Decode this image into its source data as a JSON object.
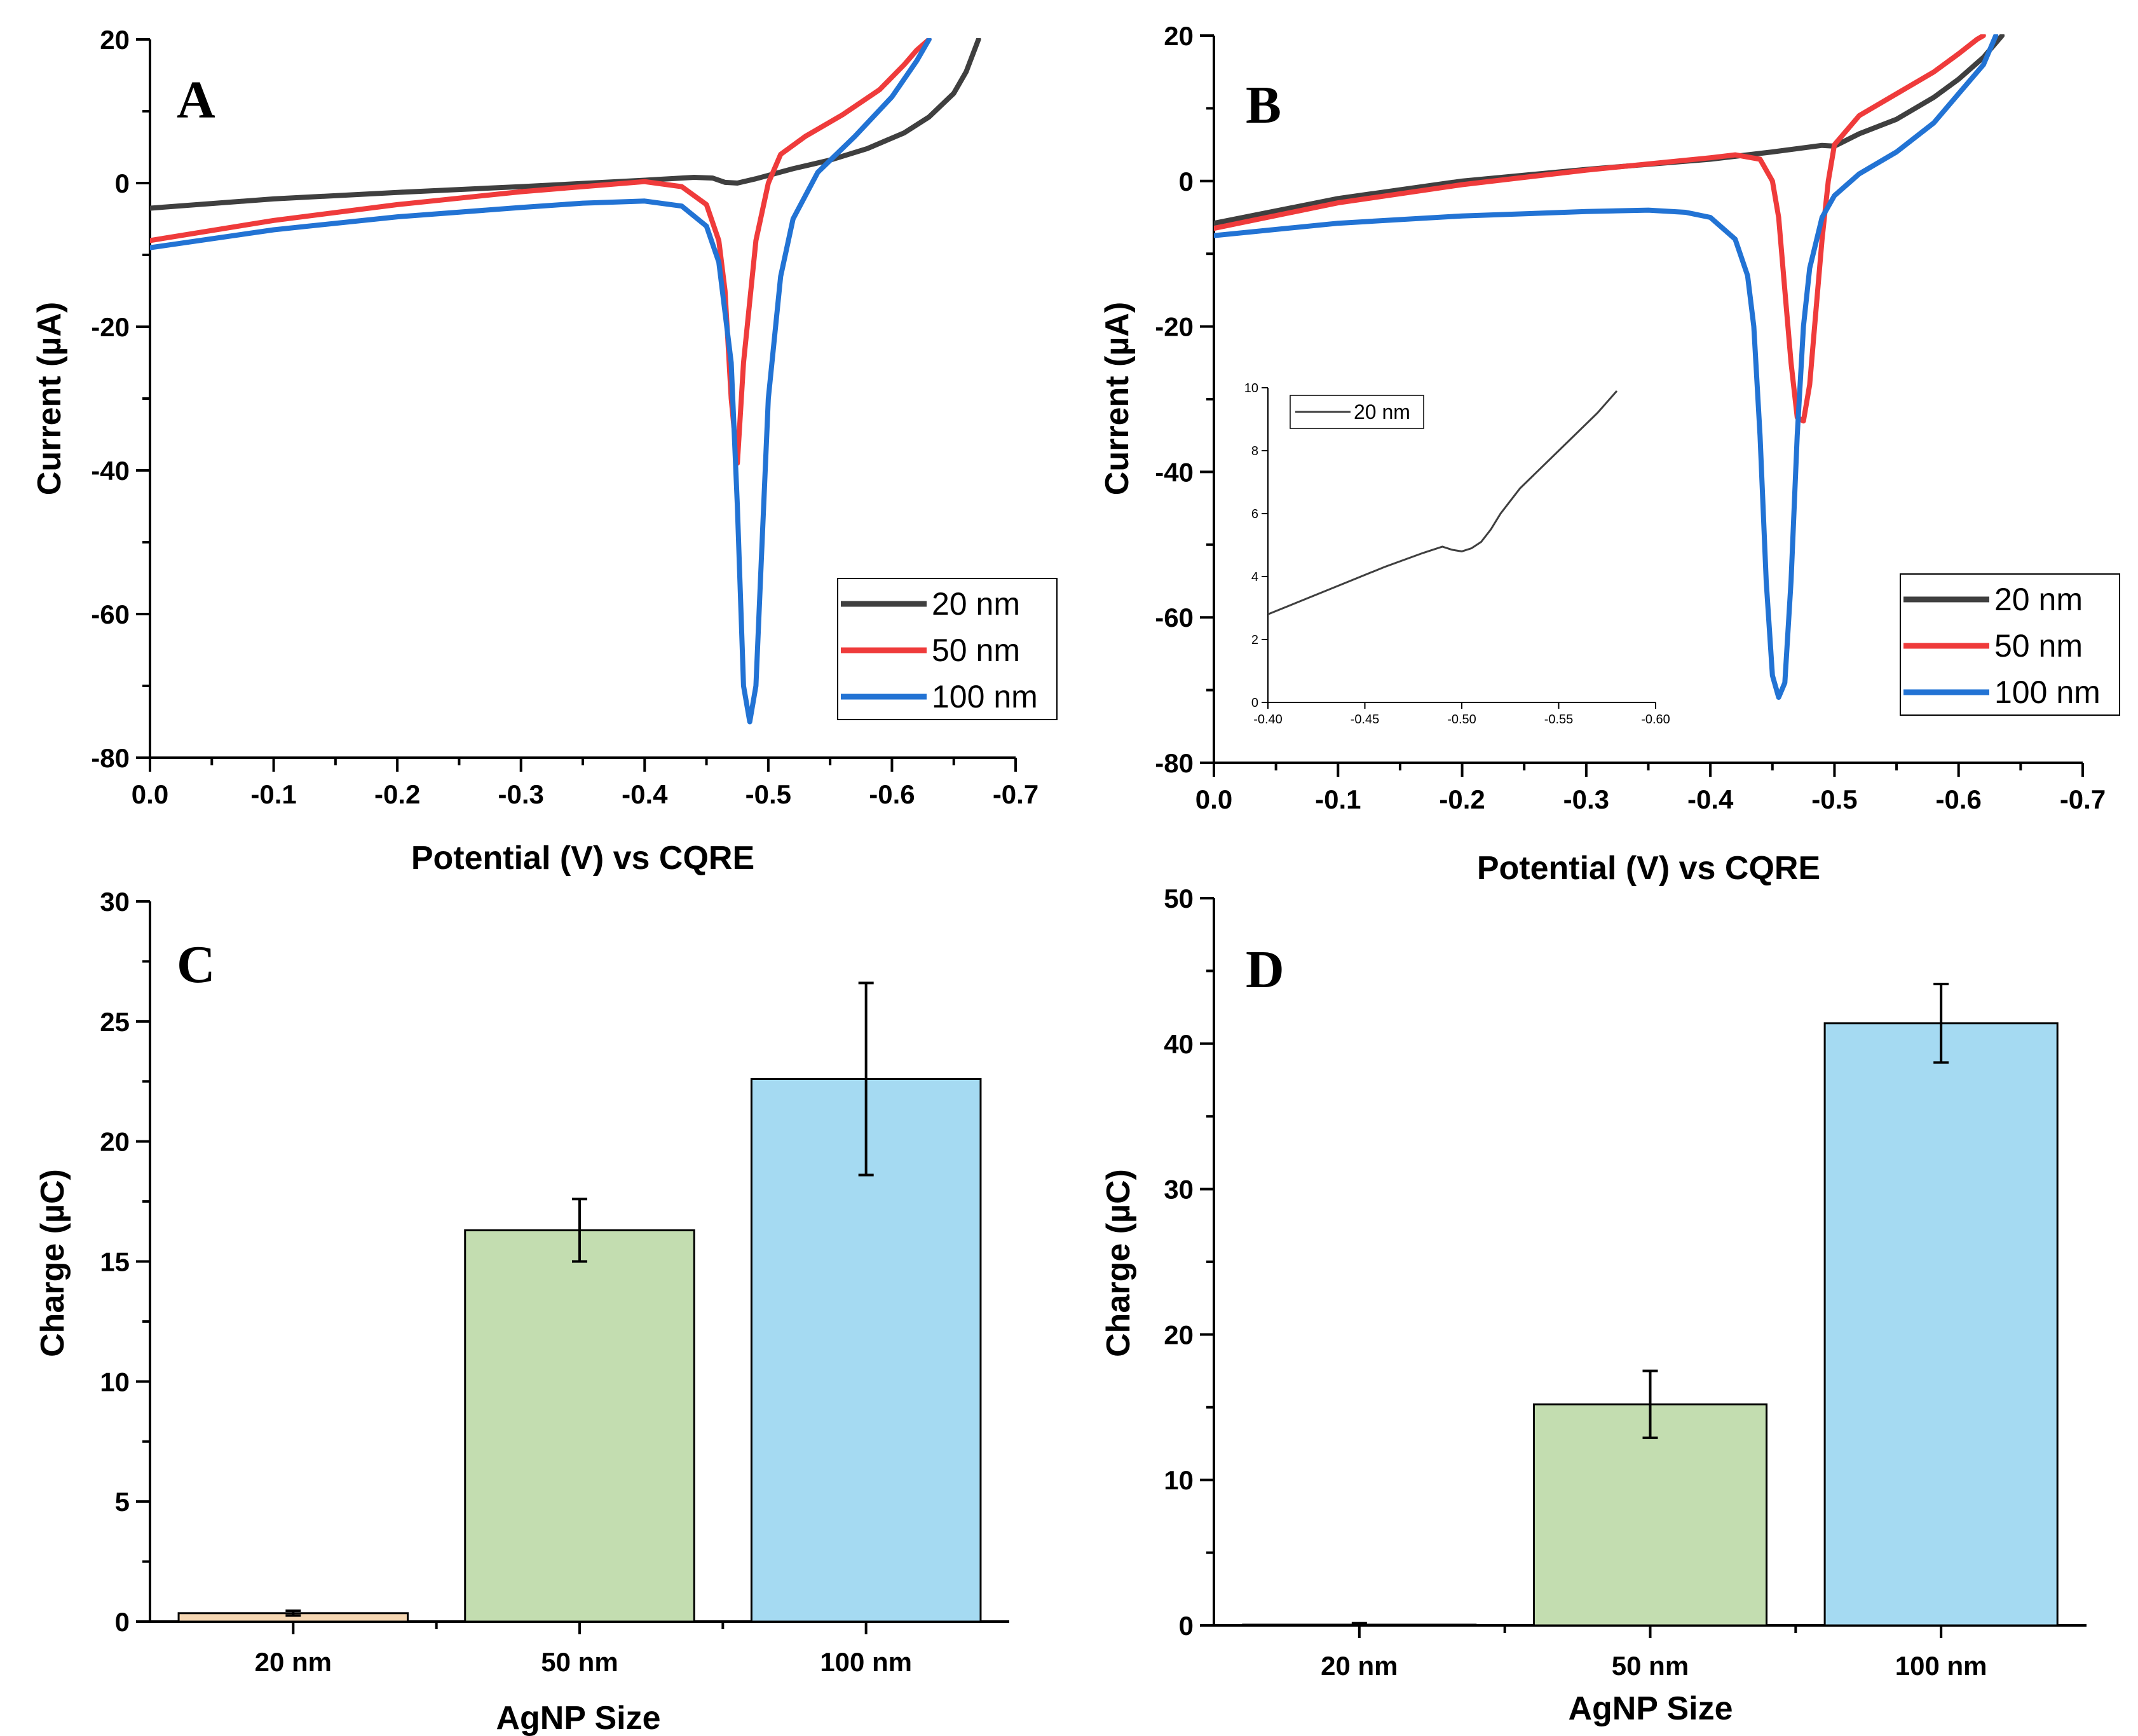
{
  "chart_data": [
    {
      "panel": "A",
      "type": "line",
      "xlabel": "Potential (V) vs CQRE",
      "ylabel": "Current (µA)",
      "xlim": [
        0.0,
        -0.7
      ],
      "ylim": [
        -80,
        20
      ],
      "xticks": [
        "0.0",
        "-0.1",
        "-0.2",
        "-0.3",
        "-0.4",
        "-0.5",
        "-0.6",
        "-0.7"
      ],
      "yticks": [
        "20",
        "0",
        "-20",
        "-40",
        "-60",
        "-80"
      ],
      "legend_position": "bottom-right",
      "series": [
        {
          "name": "20 nm",
          "color": "#3f3f3f",
          "x": [
            0.0,
            -0.1,
            -0.2,
            -0.3,
            -0.4,
            -0.44,
            -0.455,
            -0.465,
            -0.475,
            -0.49,
            -0.52,
            -0.55,
            -0.58,
            -0.61,
            -0.63,
            -0.65,
            -0.66,
            -0.67
          ],
          "y": [
            -3.5,
            -2.2,
            -1.3,
            -0.5,
            0.4,
            0.8,
            0.7,
            0.1,
            0.0,
            0.6,
            2.0,
            3.2,
            4.8,
            7.0,
            9.2,
            12.5,
            15.5,
            20.0
          ]
        },
        {
          "name": "50 nm",
          "color": "#ef3b3b",
          "x": [
            0.0,
            -0.1,
            -0.2,
            -0.3,
            -0.35,
            -0.4,
            -0.43,
            -0.45,
            -0.46,
            -0.465,
            -0.47,
            -0.475,
            -0.48,
            -0.49,
            -0.5,
            -0.51,
            -0.53,
            -0.56,
            -0.59,
            -0.61,
            -0.62,
            -0.63
          ],
          "y": [
            -8.0,
            -5.2,
            -3.0,
            -1.2,
            -0.5,
            0.2,
            -0.5,
            -3.0,
            -8.0,
            -15.0,
            -30.0,
            -39.0,
            -25.0,
            -8.0,
            0.0,
            4.0,
            6.5,
            9.5,
            13.0,
            16.5,
            18.5,
            20.0
          ]
        },
        {
          "name": "100 nm",
          "color": "#2273d4",
          "x": [
            0.0,
            -0.1,
            -0.2,
            -0.3,
            -0.35,
            -0.4,
            -0.43,
            -0.45,
            -0.46,
            -0.47,
            -0.475,
            -0.48,
            -0.485,
            -0.49,
            -0.495,
            -0.5,
            -0.51,
            -0.52,
            -0.54,
            -0.57,
            -0.6,
            -0.62,
            -0.63
          ],
          "y": [
            -9.0,
            -6.5,
            -4.7,
            -3.4,
            -2.8,
            -2.5,
            -3.2,
            -6.0,
            -11.0,
            -25.0,
            -45.0,
            -70.0,
            -75.0,
            -70.0,
            -50.0,
            -30.0,
            -13.0,
            -5.0,
            1.5,
            6.5,
            12.0,
            17.0,
            20.0
          ]
        }
      ]
    },
    {
      "panel": "B",
      "type": "line",
      "xlabel": "Potential (V) vs CQRE",
      "ylabel": "Current (µA)",
      "xlim": [
        0.0,
        -0.7
      ],
      "ylim": [
        -80,
        20
      ],
      "xticks": [
        "0.0",
        "-0.1",
        "-0.2",
        "-0.3",
        "-0.4",
        "-0.5",
        "-0.6",
        "-0.7"
      ],
      "yticks": [
        "20",
        "0",
        "-20",
        "-40",
        "-60",
        "-80"
      ],
      "legend_position": "bottom-right",
      "series": [
        {
          "name": "20 nm",
          "color": "#3f3f3f",
          "x": [
            0.0,
            -0.1,
            -0.2,
            -0.3,
            -0.4,
            -0.45,
            -0.49,
            -0.5,
            -0.52,
            -0.55,
            -0.58,
            -0.6,
            -0.62,
            -0.635
          ],
          "y": [
            -5.8,
            -2.4,
            0.0,
            1.6,
            3.0,
            4.0,
            4.9,
            4.8,
            6.5,
            8.5,
            11.5,
            14.0,
            17.0,
            20.0
          ]
        },
        {
          "name": "50 nm",
          "color": "#ef3b3b",
          "x": [
            0.0,
            -0.1,
            -0.2,
            -0.3,
            -0.4,
            -0.42,
            -0.44,
            -0.45,
            -0.455,
            -0.46,
            -0.465,
            -0.47,
            -0.475,
            -0.48,
            -0.485,
            -0.49,
            -0.495,
            -0.5,
            -0.52,
            -0.55,
            -0.58,
            -0.6,
            -0.615,
            -0.62
          ],
          "y": [
            -6.5,
            -3.0,
            -0.5,
            1.5,
            3.2,
            3.6,
            3.0,
            0.0,
            -5.0,
            -15.0,
            -25.0,
            -32.5,
            -33.0,
            -28.0,
            -18.0,
            -8.0,
            0.0,
            5.0,
            9.0,
            12.0,
            15.0,
            17.5,
            19.5,
            20.0
          ]
        },
        {
          "name": "100 nm",
          "color": "#2273d4",
          "x": [
            0.0,
            -0.1,
            -0.2,
            -0.3,
            -0.35,
            -0.38,
            -0.4,
            -0.42,
            -0.43,
            -0.435,
            -0.44,
            -0.445,
            -0.45,
            -0.455,
            -0.46,
            -0.465,
            -0.47,
            -0.475,
            -0.48,
            -0.49,
            -0.5,
            -0.52,
            -0.55,
            -0.58,
            -0.6,
            -0.62,
            -0.63
          ],
          "y": [
            -7.5,
            -5.8,
            -4.8,
            -4.2,
            -4.0,
            -4.3,
            -5.0,
            -8.0,
            -13.0,
            -20.0,
            -35.0,
            -55.0,
            -68.0,
            -71.0,
            -69.0,
            -55.0,
            -35.0,
            -20.0,
            -12.0,
            -5.0,
            -2.0,
            1.0,
            4.0,
            8.0,
            12.0,
            16.0,
            20.0
          ]
        }
      ],
      "inset": {
        "xlim": [
          -0.4,
          -0.6
        ],
        "ylim": [
          0,
          10
        ],
        "xticks": [
          "-0.40",
          "-0.45",
          "-0.50",
          "-0.55",
          "-0.60"
        ],
        "yticks": [
          "0",
          "2",
          "4",
          "6",
          "8",
          "10"
        ],
        "series": [
          {
            "name": "20 nm",
            "color": "#3f3f3f",
            "x": [
              -0.4,
              -0.42,
              -0.44,
              -0.46,
              -0.48,
              -0.49,
              -0.495,
              -0.5,
              -0.505,
              -0.51,
              -0.515,
              -0.52,
              -0.53,
              -0.54,
              -0.55,
              -0.56,
              -0.57,
              -0.58
            ],
            "y": [
              2.8,
              3.3,
              3.8,
              4.3,
              4.75,
              4.95,
              4.85,
              4.8,
              4.9,
              5.1,
              5.5,
              6.0,
              6.8,
              7.4,
              8.0,
              8.6,
              9.2,
              9.9
            ]
          }
        ]
      }
    },
    {
      "panel": "C",
      "type": "bar",
      "xlabel": "AgNP Size",
      "ylabel": "Charge (µC)",
      "categories": [
        "20 nm",
        "50 nm",
        "100 nm"
      ],
      "values": [
        0.35,
        16.3,
        22.6
      ],
      "errors": [
        0.1,
        1.3,
        4.0
      ],
      "colors": [
        "#f6d7b3",
        "#c3ddb0",
        "#a5daf2"
      ],
      "ylim": [
        0,
        30
      ],
      "yticks": [
        "0",
        "5",
        "10",
        "15",
        "20",
        "25",
        "30"
      ]
    },
    {
      "panel": "D",
      "type": "bar",
      "xlabel": "AgNP Size",
      "ylabel": "Charge (µC)",
      "categories": [
        "20 nm",
        "50 nm",
        "100 nm"
      ],
      "values": [
        0.05,
        15.2,
        41.4
      ],
      "errors": [
        0.1,
        2.3,
        2.7
      ],
      "colors": [
        "#f6d7b3",
        "#c3ddb0",
        "#a5daf2"
      ],
      "ylim": [
        0,
        50
      ],
      "yticks": [
        "0",
        "10",
        "20",
        "30",
        "40",
        "50"
      ]
    }
  ]
}
